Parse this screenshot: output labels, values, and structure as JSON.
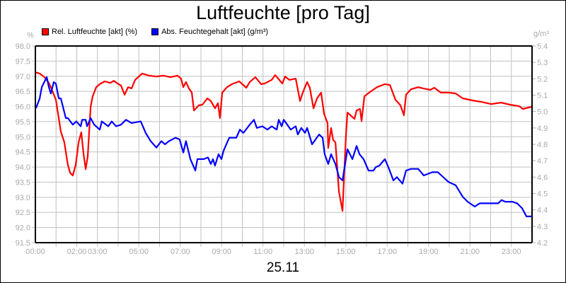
{
  "chart_data": {
    "type": "line",
    "title": "Luftfeuchte [pro Tag]",
    "subtitle": "25.11",
    "legend_placement": "top-left",
    "grid": true,
    "y_left": {
      "unit": "%",
      "range": [
        91.5,
        98.0
      ],
      "step": 0.5,
      "tick_labels": [
        "98.0",
        "97.5",
        "97.0",
        "96.5",
        "96.0",
        "95.5",
        "95.0",
        "94.5",
        "94.0",
        "93.5",
        "93.0",
        "92.5",
        "92.0",
        "91.5"
      ]
    },
    "y_right": {
      "unit": "g/m³",
      "range": [
        4.2,
        5.4
      ],
      "step": 0.1,
      "tick_labels": [
        "5.4",
        "5.3",
        "5.2",
        "5.1",
        "5.0",
        "4.9",
        "4.8",
        "4.7",
        "4.6",
        "4.5",
        "4.4",
        "4.3",
        "4.2"
      ]
    },
    "x_axis": {
      "unit": "hours",
      "range": [
        0,
        24
      ],
      "tick_labels": [
        {
          "h": 0,
          "label": "00:00"
        },
        {
          "h": 2,
          "label": "02:00"
        },
        {
          "h": 3,
          "label": "03:00"
        },
        {
          "h": 5,
          "label": "05:00"
        },
        {
          "h": 7,
          "label": "07:00"
        },
        {
          "h": 9,
          "label": "09:00"
        },
        {
          "h": 11,
          "label": "11:00"
        },
        {
          "h": 13,
          "label": "13:00"
        },
        {
          "h": 15,
          "label": "15:00"
        },
        {
          "h": 17,
          "label": "17:00"
        },
        {
          "h": 19,
          "label": "19:00"
        },
        {
          "h": 21,
          "label": "21:00"
        },
        {
          "h": 23,
          "label": "23:00"
        }
      ]
    },
    "series": [
      {
        "name": "Rel. Luftfeuchte [akt] (%)",
        "color": "#ff0000",
        "axis": "left",
        "x": [
          0,
          0.21,
          0.44,
          0.65,
          0.79,
          0.99,
          1.23,
          1.4,
          1.57,
          1.68,
          1.81,
          1.95,
          2.09,
          2.22,
          2.32,
          2.43,
          2.53,
          2.67,
          2.77,
          2.94,
          3.11,
          3.35,
          3.62,
          3.79,
          3.97,
          4.14,
          4.31,
          4.48,
          4.65,
          4.82,
          5.16,
          5.5,
          5.85,
          6.19,
          6.53,
          6.87,
          7.04,
          7.15,
          7.28,
          7.42,
          7.56,
          7.66,
          7.9,
          8.07,
          8.31,
          8.48,
          8.68,
          8.82,
          8.92,
          9.03,
          9.26,
          9.5,
          9.85,
          10.19,
          10.36,
          10.63,
          10.91,
          11.08,
          11.42,
          11.59,
          11.93,
          12.07,
          12.27,
          12.58,
          12.79,
          12.92,
          13.13,
          13.26,
          13.44,
          13.61,
          13.81,
          13.95,
          14.12,
          14.15,
          14.29,
          14.39,
          14.5,
          14.67,
          14.84,
          15.01,
          15.08,
          15.42,
          15.52,
          15.69,
          15.76,
          15.9,
          16.17,
          16.51,
          16.89,
          17.13,
          17.4,
          17.64,
          17.81,
          17.91,
          18.15,
          18.5,
          18.74,
          19.08,
          19.28,
          19.59,
          19.97,
          20.31,
          20.65,
          21.13,
          21.57,
          22.02,
          22.5,
          22.94,
          23.38,
          23.56,
          23.97
        ],
        "y": [
          97.13,
          97.09,
          96.97,
          96.78,
          96.57,
          96.22,
          95.17,
          94.82,
          94.07,
          93.81,
          93.72,
          94.07,
          94.82,
          95.15,
          94.47,
          93.93,
          94.35,
          95.99,
          96.34,
          96.64,
          96.74,
          96.83,
          96.78,
          96.85,
          96.76,
          96.69,
          96.39,
          96.64,
          96.6,
          96.88,
          97.09,
          97.02,
          96.99,
          97.02,
          96.97,
          97.02,
          96.92,
          96.64,
          96.81,
          96.6,
          96.46,
          95.87,
          96.04,
          96.06,
          96.27,
          96.18,
          95.94,
          96.11,
          95.62,
          96.46,
          96.64,
          96.74,
          96.83,
          96.62,
          96.81,
          96.97,
          96.74,
          96.76,
          96.88,
          97.04,
          96.76,
          96.99,
          96.88,
          96.92,
          96.18,
          96.46,
          96.81,
          96.62,
          95.94,
          96.27,
          96.46,
          95.76,
          95.45,
          94.63,
          95.29,
          94.89,
          94.82,
          93.18,
          92.55,
          95.05,
          95.8,
          95.59,
          95.87,
          95.92,
          95.52,
          96.34,
          96.48,
          96.64,
          96.74,
          96.71,
          96.22,
          96.04,
          95.71,
          96.39,
          96.57,
          96.64,
          96.6,
          96.55,
          96.62,
          96.46,
          96.46,
          96.43,
          96.27,
          96.2,
          96.15,
          96.08,
          96.13,
          96.06,
          96.01,
          95.92,
          95.99
        ]
      },
      {
        "name": "Abs. Feuchtegehalt [akt] (g/m³)",
        "color": "#0000ff",
        "axis": "right",
        "x": [
          0.03,
          0.21,
          0.31,
          0.55,
          0.65,
          0.75,
          0.89,
          0.99,
          1.13,
          1.23,
          1.47,
          1.57,
          1.81,
          1.98,
          2.19,
          2.26,
          2.43,
          2.5,
          2.67,
          2.84,
          3.11,
          3.21,
          3.52,
          3.69,
          3.9,
          4.14,
          4.38,
          4.65,
          5.09,
          5.33,
          5.57,
          5.85,
          6.09,
          6.26,
          6.46,
          6.77,
          6.97,
          7.15,
          7.28,
          7.49,
          7.73,
          7.83,
          8.14,
          8.34,
          8.48,
          8.58,
          8.68,
          8.85,
          8.99,
          9.09,
          9.26,
          9.37,
          9.71,
          9.88,
          10.05,
          10.36,
          10.56,
          10.7,
          10.97,
          11.21,
          11.42,
          11.66,
          11.76,
          11.9,
          12.0,
          12.17,
          12.34,
          12.58,
          12.68,
          12.85,
          13.03,
          13.13,
          13.37,
          13.71,
          13.88,
          13.98,
          14.15,
          14.29,
          14.5,
          14.67,
          14.84,
          15.08,
          15.32,
          15.52,
          15.66,
          15.86,
          16.1,
          16.34,
          16.44,
          16.62,
          16.89,
          17.06,
          17.3,
          17.47,
          17.74,
          17.91,
          18.15,
          18.5,
          18.77,
          19.18,
          19.45,
          19.62,
          19.97,
          20.31,
          20.65,
          20.89,
          21.23,
          21.47,
          21.68,
          22.36,
          22.53,
          22.7,
          23.04,
          23.28,
          23.52,
          23.73,
          23.97
        ],
        "y": [
          5.02,
          5.08,
          5.15,
          5.21,
          5.15,
          5.11,
          5.18,
          5.17,
          5.08,
          5.08,
          4.96,
          4.96,
          4.92,
          4.94,
          4.91,
          4.95,
          4.95,
          4.91,
          4.96,
          4.92,
          4.89,
          4.94,
          4.91,
          4.94,
          4.91,
          4.92,
          4.95,
          4.93,
          4.94,
          4.87,
          4.82,
          4.78,
          4.82,
          4.8,
          4.82,
          4.84,
          4.83,
          4.75,
          4.82,
          4.71,
          4.64,
          4.71,
          4.71,
          4.72,
          4.68,
          4.71,
          4.67,
          4.74,
          4.71,
          4.76,
          4.81,
          4.84,
          4.84,
          4.89,
          4.87,
          4.92,
          4.95,
          4.9,
          4.91,
          4.89,
          4.91,
          4.89,
          4.95,
          4.91,
          4.95,
          4.92,
          4.89,
          4.91,
          4.86,
          4.9,
          4.87,
          4.9,
          4.8,
          4.86,
          4.84,
          4.74,
          4.68,
          4.74,
          4.68,
          4.6,
          4.58,
          4.77,
          4.71,
          4.79,
          4.74,
          4.71,
          4.64,
          4.64,
          4.66,
          4.67,
          4.71,
          4.66,
          4.58,
          4.6,
          4.56,
          4.64,
          4.65,
          4.65,
          4.61,
          4.63,
          4.63,
          4.61,
          4.57,
          4.55,
          4.48,
          4.45,
          4.42,
          4.44,
          4.44,
          4.44,
          4.46,
          4.45,
          4.45,
          4.44,
          4.41,
          4.36,
          4.36
        ]
      }
    ]
  }
}
